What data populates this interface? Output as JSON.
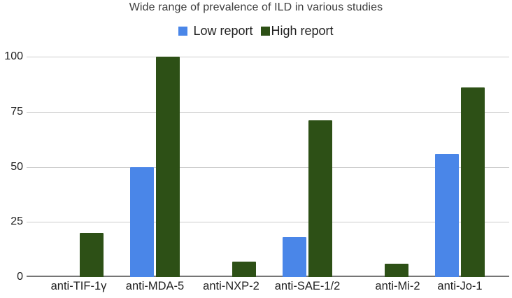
{
  "chart_data": {
    "type": "bar",
    "title": "Wide range of prevalence of ILD in various studies",
    "categories": [
      "anti-TIF-1γ",
      "anti-MDA-5",
      "anti-NXP-2",
      "anti-SAE-1/2",
      "anti-Mi-2",
      "anti-Jo-1"
    ],
    "series": [
      {
        "name": "Low report",
        "color": "#4a86e8",
        "values": [
          0,
          50,
          0,
          18,
          0,
          56
        ]
      },
      {
        "name": "High report",
        "color": "#2d5016",
        "values": [
          20,
          100,
          7,
          71,
          6,
          86
        ]
      }
    ],
    "xlabel": "",
    "ylabel": "",
    "ylim": [
      0,
      100
    ],
    "yticks": [
      0,
      25,
      50,
      75,
      100
    ],
    "grid": true,
    "legend_position": "top",
    "colors": {
      "gridline": "#cccccc",
      "axis_line": "#757575",
      "label_text": "#1f1f1f",
      "title_text": "#3d3d3d",
      "background": "#ffffff"
    }
  }
}
